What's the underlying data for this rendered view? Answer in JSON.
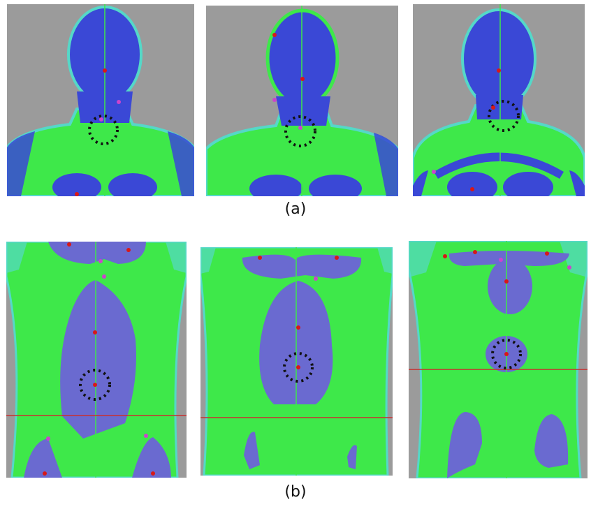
{
  "figure": {
    "row_a": {
      "label": "(a)"
    },
    "row_b": {
      "label": "(b)"
    }
  },
  "colors": {
    "background_gray": "#9b9b9b",
    "mesh_green": "#3ee84a",
    "mesh_cyan": "#55d8c8",
    "mesh_blue": "#3a48d6",
    "region_violet": "#6a6ad0",
    "landmark_red": "#d81818",
    "landmark_magenta": "#cc44cc",
    "marker_black": "#111111",
    "axis_red": "#c83030"
  }
}
